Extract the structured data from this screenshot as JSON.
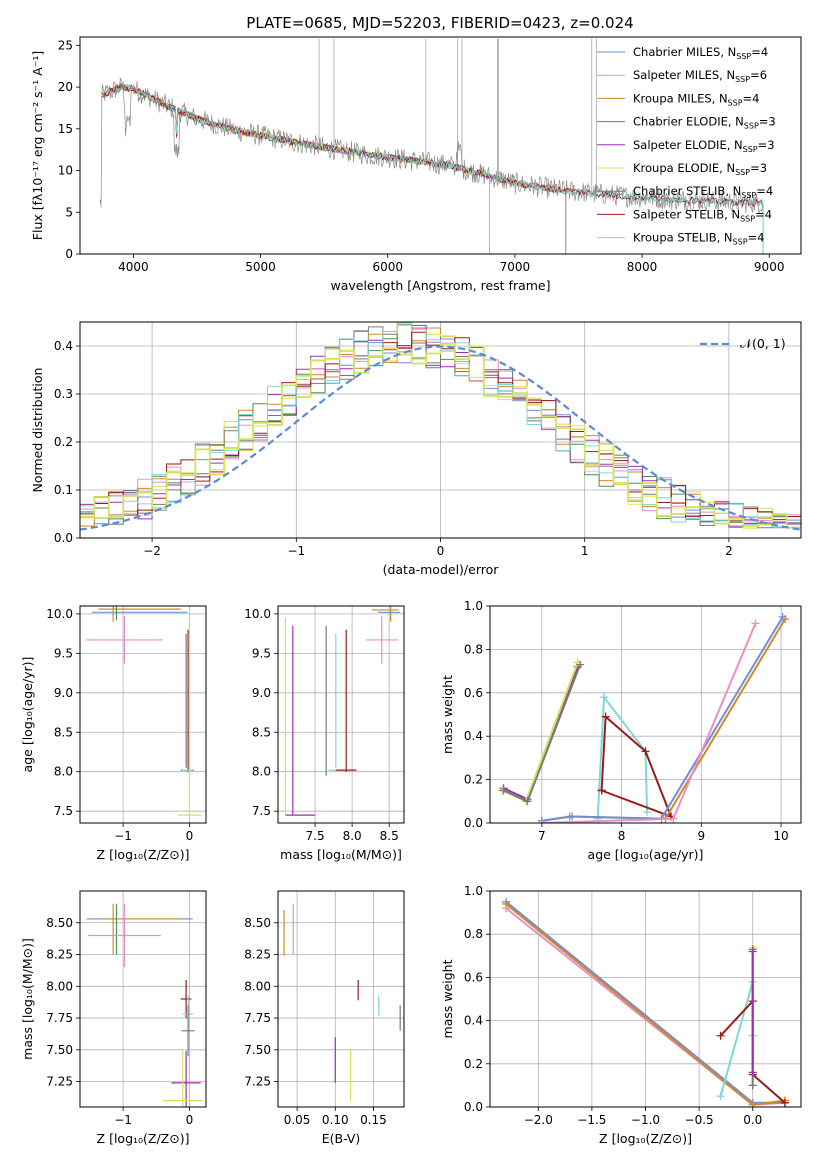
{
  "figure_title": "PLATE=0685, MJD=52203, FIBERID=0423, z=0.024",
  "model_colors": [
    "#6f8fd6",
    "#e88fc8",
    "#d08a2a",
    "#4f8f4f",
    "#9b30b0",
    "#e0e050",
    "#7a7a7a",
    "#9b1b1b",
    "#7fd7d7"
  ],
  "chart_data": [
    {
      "id": "spectrum",
      "type": "line",
      "title": "PLATE=0685, MJD=52203, FIBERID=0423, z=0.024",
      "xlabel": "wavelength [Angstrom, rest frame]",
      "ylabel": "Flux [fλ10⁻¹⁷ erg cm⁻² s⁻¹ A⁻¹]",
      "xlim": [
        3580,
        9250
      ],
      "ylim": [
        0,
        26
      ],
      "xticks": [
        "4000",
        "5000",
        "6000",
        "7000",
        "8000",
        "9000"
      ],
      "yticks": [
        "0",
        "5",
        "10",
        "15",
        "20",
        "25"
      ],
      "grid": false,
      "legend_position": "top-right",
      "legend": [
        {
          "label": "Chabrier MILES, N",
          "sub": "SSP",
          "suffix": "=4",
          "color": "#6f8fd6"
        },
        {
          "label": "Salpeter MILES, N",
          "sub": "SSP",
          "suffix": "=6",
          "color": "#e88fc8"
        },
        {
          "label": "Kroupa MILES, N",
          "sub": "SSP",
          "suffix": "=4",
          "color": "#d08a2a"
        },
        {
          "label": "Chabrier ELODIE, N",
          "sub": "SSP",
          "suffix": "=3",
          "color": "#4f8f4f"
        },
        {
          "label": "Salpeter ELODIE, N",
          "sub": "SSP",
          "suffix": "=3",
          "color": "#9b30b0"
        },
        {
          "label": "Kroupa ELODIE, N",
          "sub": "SSP",
          "suffix": "=3",
          "color": "#e0e050"
        },
        {
          "label": "Chabrier STELIB, N",
          "sub": "SSP",
          "suffix": "=4",
          "color": "#7a7a7a"
        },
        {
          "label": "Salpeter STELIB, N",
          "sub": "SSP",
          "suffix": "=4",
          "color": "#9b1b1b"
        },
        {
          "label": "Kroupa STELIB, N",
          "sub": "SSP",
          "suffix": "=4",
          "color": "#7fd7d7"
        }
      ],
      "continuum_points": [
        [
          3750,
          19
        ],
        [
          3900,
          20
        ],
        [
          4000,
          19.8
        ],
        [
          4100,
          19
        ],
        [
          4300,
          17.5
        ],
        [
          4500,
          16.2
        ],
        [
          4800,
          14.8
        ],
        [
          5000,
          14.2
        ],
        [
          5300,
          13.3
        ],
        [
          5600,
          12.5
        ],
        [
          5900,
          11.8
        ],
        [
          6200,
          11.2
        ],
        [
          6500,
          10.6
        ],
        [
          6800,
          9.3
        ],
        [
          7000,
          8.5
        ],
        [
          7200,
          8.0
        ],
        [
          7400,
          7.6
        ],
        [
          7800,
          7.0
        ],
        [
          8200,
          6.6
        ],
        [
          8600,
          6.3
        ],
        [
          8950,
          6.1
        ]
      ],
      "model_cutoffs": {
        "miles_end": 7400,
        "elodie_end": 6800,
        "stelib_end": 8950
      }
    },
    {
      "id": "residuals",
      "type": "line",
      "xlabel": "(data-model)/error",
      "ylabel": "Normed distribution",
      "xlim": [
        -2.5,
        2.5
      ],
      "ylim": [
        0,
        0.45
      ],
      "xticks": [
        "−2",
        "−1",
        "0",
        "1",
        "2"
      ],
      "yticks": [
        "0.0",
        "0.1",
        "0.2",
        "0.3",
        "0.4"
      ],
      "grid": true,
      "legend_position": "top-right",
      "legend": [
        {
          "label": "𝒩(0, 1)",
          "color": "#5b8bd8",
          "style": "dashed"
        }
      ],
      "bin_width": 0.1
    },
    {
      "id": "age_vs_Z",
      "type": "scatter",
      "xlabel": "Z [log₁₀(Z/Z⊙)]",
      "ylabel": "age  [log₁₀(age/yr)]",
      "xlim": [
        -1.65,
        0.25
      ],
      "ylim": [
        7.35,
        10.1
      ],
      "xticks": [
        "−1",
        "0"
      ],
      "yticks": [
        "7.5",
        "8.0",
        "8.5",
        "9.0",
        "9.5",
        "10.0"
      ],
      "grid": true,
      "error_bars": [
        {
          "x": -0.75,
          "y": 10.02,
          "xerr": 0.72,
          "yerr": 0.0,
          "color": "#6f8fd6"
        },
        {
          "x": -0.75,
          "y": 10.06,
          "xerr": 0.62,
          "yerr": 0.0,
          "color": "#d08a2a"
        },
        {
          "x": -1.15,
          "y": 10.0,
          "xerr": 0.0,
          "yerr": 0.1,
          "color": "#d08a2a"
        },
        {
          "x": -1.1,
          "y": 10.02,
          "xerr": 0.0,
          "yerr": 0.1,
          "color": "#4f8f4f"
        },
        {
          "x": -0.98,
          "y": 9.67,
          "xerr": 0.58,
          "yerr": 0.3,
          "color": "#e88fc8"
        },
        {
          "x": -0.02,
          "y": 8.9,
          "xerr": 0.0,
          "yerr": 0.9,
          "color": "#9b1b1b"
        },
        {
          "x": -0.05,
          "y": 8.9,
          "xerr": 0.0,
          "yerr": 0.85,
          "color": "#7a7a7a"
        },
        {
          "x": -0.03,
          "y": 8.02,
          "xerr": 0.1,
          "yerr": 0.0,
          "color": "#7a7a7a"
        },
        {
          "x": -0.03,
          "y": 8.02,
          "xerr": 0.08,
          "yerr": 0.0,
          "color": "#7fd7d7"
        },
        {
          "x": 0.0,
          "y": 7.45,
          "xerr": 0.18,
          "yerr": 0.0,
          "color": "#d4e25a"
        },
        {
          "x": 0.0,
          "y": 8.7,
          "xerr": 0.0,
          "yerr": 1.25,
          "color": "#d4e25a"
        }
      ]
    },
    {
      "id": "age_vs_mass",
      "type": "scatter",
      "xlabel": "mass [log₁₀(M/M⊙)]",
      "ylabel": "",
      "xlim": [
        7.0,
        8.7
      ],
      "ylim": [
        7.35,
        10.1
      ],
      "xticks": [
        "7.5",
        "8.0",
        "8.5"
      ],
      "yticks": [
        "7.5",
        "8.0",
        "8.5",
        "9.0",
        "9.5",
        "10.0"
      ],
      "grid": true,
      "error_bars": [
        {
          "x": 7.1,
          "y": 8.7,
          "xerr": 0.0,
          "yerr": 1.25,
          "color": "#d4e25a"
        },
        {
          "x": 7.3,
          "y": 7.45,
          "xerr": 0.2,
          "yerr": 0.0,
          "color": "#9b30b0"
        },
        {
          "x": 7.2,
          "y": 8.65,
          "xerr": 0.0,
          "yerr": 1.2,
          "color": "#9b30b0"
        },
        {
          "x": 7.65,
          "y": 8.9,
          "xerr": 0.0,
          "yerr": 0.95,
          "color": "#7a7a7a"
        },
        {
          "x": 7.78,
          "y": 8.02,
          "xerr": 0.1,
          "yerr": 0.0,
          "color": "#7fd7d7"
        },
        {
          "x": 7.78,
          "y": 8.9,
          "xerr": 0.0,
          "yerr": 0.85,
          "color": "#7fd7d7"
        },
        {
          "x": 7.92,
          "y": 8.02,
          "xerr": 0.14,
          "yerr": 0.0,
          "color": "#9b1b1b"
        },
        {
          "x": 7.92,
          "y": 8.9,
          "xerr": 0.0,
          "yerr": 0.9,
          "color": "#9b1b1b"
        },
        {
          "x": 8.45,
          "y": 10.05,
          "xerr": 0.18,
          "yerr": 0.0,
          "color": "#d08a2a"
        },
        {
          "x": 8.52,
          "y": 10.0,
          "xerr": 0.0,
          "yerr": 0.1,
          "color": "#d08a2a"
        },
        {
          "x": 8.4,
          "y": 9.67,
          "xerr": 0.22,
          "yerr": 0.3,
          "color": "#e88fc8"
        },
        {
          "x": 8.5,
          "y": 10.02,
          "xerr": 0.15,
          "yerr": 0.0,
          "color": "#6f8fd6"
        }
      ]
    },
    {
      "id": "massweight_vs_age",
      "type": "line",
      "xlabel": "age  [log₁₀(age/yr)]",
      "ylabel": "mass weight",
      "xlim": [
        6.35,
        10.25
      ],
      "ylim": [
        0,
        1.0
      ],
      "xticks": [
        "6",
        "7",
        "8",
        "9",
        "10"
      ],
      "yticks": [
        "0.0",
        "0.2",
        "0.4",
        "0.6",
        "0.8",
        "1.0"
      ],
      "grid": true,
      "series": [
        {
          "color": "#9b30b0",
          "points": [
            [
              6.52,
              0.16
            ],
            [
              6.82,
              0.11
            ],
            [
              7.45,
              0.72
            ]
          ]
        },
        {
          "color": "#d4e25a",
          "points": [
            [
              6.5,
              0.15
            ],
            [
              6.8,
              0.1
            ],
            [
              7.45,
              0.74
            ]
          ]
        },
        {
          "color": "#7a7a7a",
          "points": [
            [
              6.52,
              0.15
            ],
            [
              6.82,
              0.1
            ],
            [
              7.48,
              0.73
            ]
          ]
        },
        {
          "color": "#7fd7d7",
          "points": [
            [
              7.7,
              0.02
            ],
            [
              7.78,
              0.58
            ],
            [
              8.3,
              0.33
            ],
            [
              8.32,
              0.05
            ]
          ]
        },
        {
          "color": "#9b1b1b",
          "points": [
            [
              7.75,
              0.15
            ],
            [
              7.8,
              0.49
            ],
            [
              8.3,
              0.33
            ],
            [
              8.62,
              0.03
            ],
            [
              7.75,
              0.15
            ]
          ]
        },
        {
          "color": "#d08a2a",
          "points": [
            [
              7.0,
              0.01
            ],
            [
              7.35,
              0.03
            ],
            [
              8.55,
              0.02
            ],
            [
              10.05,
              0.94
            ]
          ]
        },
        {
          "color": "#6f8fd6",
          "points": [
            [
              7.0,
              0.01
            ],
            [
              7.38,
              0.03
            ],
            [
              8.5,
              0.02
            ],
            [
              10.02,
              0.95
            ]
          ]
        },
        {
          "color": "#e88fc8",
          "points": [
            [
              7.0,
              0.0
            ],
            [
              8.65,
              0.02
            ],
            [
              9.68,
              0.92
            ]
          ]
        }
      ]
    },
    {
      "id": "mass_vs_Z",
      "type": "scatter",
      "xlabel": "Z [log₁₀(Z/Z⊙)]",
      "ylabel": "mass [log₁₀(M/M⊙)]",
      "xlim": [
        -1.65,
        0.25
      ],
      "ylim": [
        7.05,
        8.75
      ],
      "xticks": [
        "−1",
        "0"
      ],
      "yticks": [
        "7.25",
        "7.50",
        "7.75",
        "8.00",
        "8.25",
        "8.50"
      ],
      "grid": true,
      "error_bars": [
        {
          "x": -0.75,
          "y": 8.53,
          "xerr": 0.8,
          "yerr": 0.0,
          "color": "#6f8fd6"
        },
        {
          "x": -0.75,
          "y": 8.53,
          "xerr": 0.6,
          "yerr": 0.0,
          "color": "#d08a2a"
        },
        {
          "x": -1.15,
          "y": 8.45,
          "xerr": 0.0,
          "yerr": 0.2,
          "color": "#d08a2a"
        },
        {
          "x": -1.1,
          "y": 8.45,
          "xerr": 0.0,
          "yerr": 0.2,
          "color": "#4f8f4f"
        },
        {
          "x": -0.98,
          "y": 8.4,
          "xerr": 0.55,
          "yerr": 0.25,
          "color": "#e88fc8"
        },
        {
          "x": -0.05,
          "y": 7.9,
          "xerr": 0.08,
          "yerr": 0.15,
          "color": "#9b1b1b"
        },
        {
          "x": -0.02,
          "y": 7.78,
          "xerr": 0.08,
          "yerr": 0.15,
          "color": "#7fd7d7"
        },
        {
          "x": -0.02,
          "y": 7.65,
          "xerr": 0.1,
          "yerr": 0.2,
          "color": "#7a7a7a"
        },
        {
          "x": -0.05,
          "y": 7.24,
          "xerr": 0.22,
          "yerr": 0.25,
          "color": "#9b30b0"
        },
        {
          "x": -0.1,
          "y": 7.1,
          "xerr": 0.3,
          "yerr": 0.4,
          "color": "#d4e25a"
        }
      ]
    },
    {
      "id": "mass_vs_ebv",
      "type": "scatter",
      "xlabel": "E(B-V)",
      "ylabel": "",
      "xlim": [
        0.025,
        0.19
      ],
      "ylim": [
        7.05,
        8.75
      ],
      "xticks": [
        "0.05",
        "0.10",
        "0.15"
      ],
      "yticks": [
        "7.25",
        "7.50",
        "7.75",
        "8.00",
        "8.25",
        "8.50"
      ],
      "grid": true,
      "error_bars": [
        {
          "x": 0.033,
          "y": 8.42,
          "xerr": 0.0,
          "yerr": 0.18,
          "color": "#d08a2a"
        },
        {
          "x": 0.045,
          "y": 8.45,
          "xerr": 0.0,
          "yerr": 0.2,
          "color": "#e88fc8"
        },
        {
          "x": 0.13,
          "y": 7.97,
          "xerr": 0.0,
          "yerr": 0.08,
          "color": "#9b1b1b"
        },
        {
          "x": 0.157,
          "y": 7.85,
          "xerr": 0.0,
          "yerr": 0.08,
          "color": "#7fd7d7"
        },
        {
          "x": 0.185,
          "y": 7.75,
          "xerr": 0.0,
          "yerr": 0.1,
          "color": "#7a7a7a"
        },
        {
          "x": 0.1,
          "y": 7.42,
          "xerr": 0.0,
          "yerr": 0.18,
          "color": "#9b30b0"
        },
        {
          "x": 0.12,
          "y": 7.3,
          "xerr": 0.0,
          "yerr": 0.2,
          "color": "#d4e25a"
        }
      ]
    },
    {
      "id": "massweight_vs_Z",
      "type": "line",
      "xlabel": "Z [log₁₀(Z/Z⊙)]",
      "ylabel": "mass weight",
      "xlim": [
        -2.45,
        0.45
      ],
      "ylim": [
        0,
        1.0
      ],
      "xticks": [
        "−2.0",
        "−1.5",
        "−1.0",
        "−0.5",
        "0.0"
      ],
      "yticks": [
        "0.0",
        "0.2",
        "0.4",
        "0.6",
        "0.8",
        "1.0"
      ],
      "grid": true,
      "series": [
        {
          "color": "#e88fc8",
          "points": [
            [
              -2.3,
              0.92
            ],
            [
              0.0,
              0.01
            ],
            [
              0.3,
              0.02
            ]
          ]
        },
        {
          "color": "#6f8fd6",
          "points": [
            [
              -2.3,
              0.95
            ],
            [
              0.0,
              0.02
            ],
            [
              0.3,
              0.02
            ]
          ]
        },
        {
          "color": "#d08a2a",
          "points": [
            [
              -2.3,
              0.94
            ],
            [
              0.0,
              0.01
            ],
            [
              0.3,
              0.03
            ]
          ]
        },
        {
          "color": "#7fd7d7",
          "points": [
            [
              -0.3,
              0.05
            ],
            [
              0.0,
              0.58
            ],
            [
              0.0,
              0.33
            ]
          ]
        },
        {
          "color": "#9b1b1b",
          "points": [
            [
              -0.3,
              0.33
            ],
            [
              0.0,
              0.49
            ],
            [
              0.0,
              0.15
            ],
            [
              0.3,
              0.02
            ]
          ]
        },
        {
          "color": "#d4e25a",
          "points": [
            [
              0.0,
              0.74
            ],
            [
              0.0,
              0.1
            ]
          ]
        },
        {
          "color": "#7a7a7a",
          "points": [
            [
              0.0,
              0.73
            ],
            [
              0.0,
              0.1
            ]
          ]
        },
        {
          "color": "#9b30b0",
          "points": [
            [
              0.0,
              0.72
            ],
            [
              0.0,
              0.16
            ]
          ]
        }
      ]
    }
  ]
}
